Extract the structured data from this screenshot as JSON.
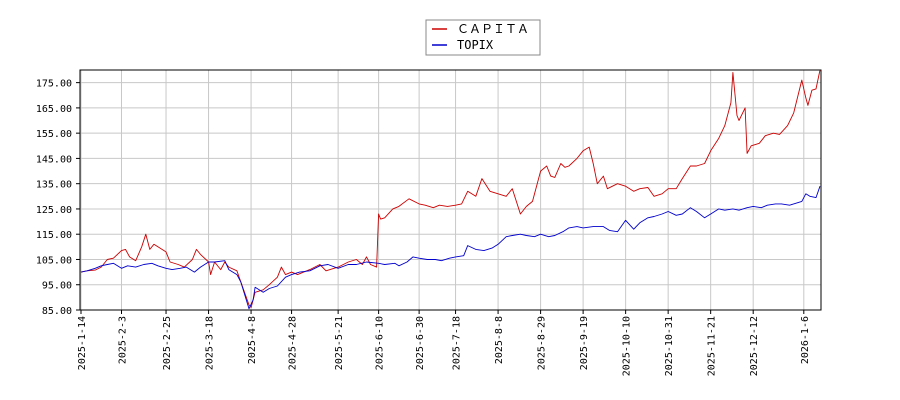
{
  "chart_data": {
    "type": "line",
    "title": "",
    "xlabel": "",
    "ylabel": "",
    "ylim": [
      85,
      180
    ],
    "grid": true,
    "legend_position": "top-center",
    "yticks": [
      "85.00",
      "95.00",
      "105.00",
      "115.00",
      "125.00",
      "135.00",
      "145.00",
      "155.00",
      "165.00",
      "175.00"
    ],
    "ytick_values": [
      85,
      95,
      105,
      115,
      125,
      135,
      145,
      155,
      165,
      175
    ],
    "xticks": [
      "2025-1-14",
      "2025-2-3",
      "2025-2-25",
      "2025-3-18",
      "2025-4-8",
      "2025-4-28",
      "2025-5-21",
      "2025-6-10",
      "2025-6-30",
      "2025-7-18",
      "2025-8-8",
      "2025-8-29",
      "2025-9-19",
      "2025-10-10",
      "2025-10-31",
      "2025-11-21",
      "2025-12-12",
      "2026-1-6"
    ],
    "series": [
      {
        "name": "ＣＡＰＩＴＡ",
        "color": "#cc0000",
        "points": [
          [
            "2025-1-14",
            100.0
          ],
          [
            "2025-1-17",
            100.5
          ],
          [
            "2025-1-21",
            100.8
          ],
          [
            "2025-1-24",
            102.0
          ],
          [
            "2025-1-27",
            105.0
          ],
          [
            "2025-1-30",
            105.5
          ],
          [
            "2025-2-3",
            108.5
          ],
          [
            "2025-2-5",
            109.0
          ],
          [
            "2025-2-7",
            106.0
          ],
          [
            "2025-2-10",
            104.5
          ],
          [
            "2025-2-13",
            110.0
          ],
          [
            "2025-2-15",
            115.0
          ],
          [
            "2025-2-17",
            109.0
          ],
          [
            "2025-2-19",
            111.0
          ],
          [
            "2025-2-21",
            110.0
          ],
          [
            "2025-2-25",
            108.0
          ],
          [
            "2025-2-27",
            104.0
          ],
          [
            "2025-3-3",
            103.0
          ],
          [
            "2025-3-6",
            102.0
          ],
          [
            "2025-3-10",
            105.0
          ],
          [
            "2025-3-12",
            109.0
          ],
          [
            "2025-3-14",
            107.0
          ],
          [
            "2025-3-18",
            104.0
          ],
          [
            "2025-3-19",
            99.0
          ],
          [
            "2025-3-21",
            104.0
          ],
          [
            "2025-3-24",
            101.0
          ],
          [
            "2025-3-26",
            104.0
          ],
          [
            "2025-3-28",
            102.0
          ],
          [
            "2025-4-1",
            100.5
          ],
          [
            "2025-4-3",
            96.0
          ],
          [
            "2025-4-7",
            87.0
          ],
          [
            "2025-4-8",
            86.0
          ],
          [
            "2025-4-10",
            92.0
          ],
          [
            "2025-4-14",
            93.0
          ],
          [
            "2025-4-17",
            95.0
          ],
          [
            "2025-4-21",
            98.0
          ],
          [
            "2025-4-23",
            102.0
          ],
          [
            "2025-4-25",
            99.0
          ],
          [
            "2025-4-28",
            100.0
          ],
          [
            "2025-5-1",
            99.0
          ],
          [
            "2025-5-7",
            101.0
          ],
          [
            "2025-5-12",
            103.0
          ],
          [
            "2025-5-15",
            100.5
          ],
          [
            "2025-5-21",
            102.0
          ],
          [
            "2025-5-26",
            104.0
          ],
          [
            "2025-5-30",
            105.0
          ],
          [
            "2025-6-2",
            103.0
          ],
          [
            "2025-6-4",
            106.0
          ],
          [
            "2025-6-6",
            103.0
          ],
          [
            "2025-6-9",
            102.0
          ],
          [
            "2025-6-10",
            123.0
          ],
          [
            "2025-6-11",
            121.0
          ],
          [
            "2025-6-13",
            121.5
          ],
          [
            "2025-6-17",
            125.0
          ],
          [
            "2025-6-20",
            126.0
          ],
          [
            "2025-6-25",
            129.0
          ],
          [
            "2025-6-30",
            127.0
          ],
          [
            "2025-7-3",
            126.5
          ],
          [
            "2025-7-7",
            125.5
          ],
          [
            "2025-7-10",
            126.5
          ],
          [
            "2025-7-14",
            126.0
          ],
          [
            "2025-7-18",
            126.5
          ],
          [
            "2025-7-21",
            127.0
          ],
          [
            "2025-7-24",
            132.0
          ],
          [
            "2025-7-28",
            130.0
          ],
          [
            "2025-7-31",
            137.0
          ],
          [
            "2025-8-4",
            132.0
          ],
          [
            "2025-8-8",
            131.0
          ],
          [
            "2025-8-12",
            130.0
          ],
          [
            "2025-8-15",
            133.0
          ],
          [
            "2025-8-19",
            123.0
          ],
          [
            "2025-8-22",
            126.0
          ],
          [
            "2025-8-25",
            128.0
          ],
          [
            "2025-8-29",
            140.0
          ],
          [
            "2025-9-1",
            142.0
          ],
          [
            "2025-9-3",
            138.0
          ],
          [
            "2025-9-5",
            137.5
          ],
          [
            "2025-9-8",
            143.0
          ],
          [
            "2025-9-10",
            141.5
          ],
          [
            "2025-9-12",
            142.0
          ],
          [
            "2025-9-16",
            145.0
          ],
          [
            "2025-9-19",
            148.0
          ],
          [
            "2025-9-22",
            149.5
          ],
          [
            "2025-9-24",
            143.0
          ],
          [
            "2025-9-26",
            135.0
          ],
          [
            "2025-9-29",
            138.0
          ],
          [
            "2025-10-1",
            133.0
          ],
          [
            "2025-10-6",
            135.0
          ],
          [
            "2025-10-10",
            134.0
          ],
          [
            "2025-10-14",
            132.0
          ],
          [
            "2025-10-17",
            133.0
          ],
          [
            "2025-10-21",
            133.5
          ],
          [
            "2025-10-24",
            130.0
          ],
          [
            "2025-10-28",
            131.0
          ],
          [
            "2025-10-31",
            133.0
          ],
          [
            "2025-11-4",
            133.0
          ],
          [
            "2025-11-7",
            137.0
          ],
          [
            "2025-11-11",
            142.0
          ],
          [
            "2025-11-14",
            142.0
          ],
          [
            "2025-11-18",
            143.0
          ],
          [
            "2025-11-21",
            148.0
          ],
          [
            "2025-11-25",
            153.0
          ],
          [
            "2025-11-28",
            158.0
          ],
          [
            "2025-12-1",
            167.0
          ],
          [
            "2025-12-2",
            179.0
          ],
          [
            "2025-12-4",
            162.0
          ],
          [
            "2025-12-5",
            160.0
          ],
          [
            "2025-12-8",
            165.0
          ],
          [
            "2025-12-9",
            147.0
          ],
          [
            "2025-12-11",
            150.0
          ],
          [
            "2025-12-15",
            151.0
          ],
          [
            "2025-12-18",
            154.0
          ],
          [
            "2025-12-22",
            155.0
          ],
          [
            "2025-12-25",
            154.5
          ],
          [
            "2025-12-29",
            158.0
          ],
          [
            "2026-1-1",
            163.0
          ],
          [
            "2026-1-5",
            176.0
          ],
          [
            "2026-1-7",
            169.0
          ],
          [
            "2026-1-8",
            166.0
          ],
          [
            "2026-1-10",
            172.0
          ],
          [
            "2026-1-12",
            172.5
          ],
          [
            "2026-1-14",
            180.0
          ]
        ]
      },
      {
        "name": "TOPIX",
        "color": "#0000cc",
        "points": [
          [
            "2025-1-14",
            100.0
          ],
          [
            "2025-1-17",
            100.5
          ],
          [
            "2025-1-21",
            101.5
          ],
          [
            "2025-1-24",
            102.5
          ],
          [
            "2025-1-27",
            103.0
          ],
          [
            "2025-1-30",
            103.5
          ],
          [
            "2025-2-3",
            101.5
          ],
          [
            "2025-2-6",
            102.5
          ],
          [
            "2025-2-10",
            102.0
          ],
          [
            "2025-2-14",
            103.0
          ],
          [
            "2025-2-18",
            103.5
          ],
          [
            "2025-2-21",
            102.5
          ],
          [
            "2025-2-25",
            101.5
          ],
          [
            "2025-2-28",
            101.0
          ],
          [
            "2025-3-4",
            101.5
          ],
          [
            "2025-3-7",
            102.0
          ],
          [
            "2025-3-11",
            100.0
          ],
          [
            "2025-3-14",
            102.0
          ],
          [
            "2025-3-18",
            104.0
          ],
          [
            "2025-3-21",
            104.0
          ],
          [
            "2025-3-26",
            104.5
          ],
          [
            "2025-3-28",
            101.0
          ],
          [
            "2025-4-1",
            99.0
          ],
          [
            "2025-4-3",
            96.0
          ],
          [
            "2025-4-7",
            85.5
          ],
          [
            "2025-4-9",
            89.0
          ],
          [
            "2025-4-10",
            94.0
          ],
          [
            "2025-4-14",
            92.0
          ],
          [
            "2025-4-17",
            93.5
          ],
          [
            "2025-4-21",
            94.5
          ],
          [
            "2025-4-25",
            98.0
          ],
          [
            "2025-4-28",
            99.0
          ],
          [
            "2025-5-2",
            100.0
          ],
          [
            "2025-5-7",
            100.5
          ],
          [
            "2025-5-12",
            102.5
          ],
          [
            "2025-5-16",
            103.0
          ],
          [
            "2025-5-21",
            101.5
          ],
          [
            "2025-5-26",
            103.0
          ],
          [
            "2025-5-30",
            103.0
          ],
          [
            "2025-6-4",
            104.0
          ],
          [
            "2025-6-10",
            103.5
          ],
          [
            "2025-6-13",
            103.0
          ],
          [
            "2025-6-18",
            103.5
          ],
          [
            "2025-6-20",
            102.5
          ],
          [
            "2025-6-24",
            104.0
          ],
          [
            "2025-6-27",
            106.0
          ],
          [
            "2025-6-30",
            105.5
          ],
          [
            "2025-7-4",
            105.0
          ],
          [
            "2025-7-8",
            105.0
          ],
          [
            "2025-7-11",
            104.5
          ],
          [
            "2025-7-15",
            105.5
          ],
          [
            "2025-7-18",
            106.0
          ],
          [
            "2025-7-22",
            106.5
          ],
          [
            "2025-7-24",
            110.5
          ],
          [
            "2025-7-28",
            109.0
          ],
          [
            "2025-8-1",
            108.5
          ],
          [
            "2025-8-5",
            109.5
          ],
          [
            "2025-8-8",
            111.0
          ],
          [
            "2025-8-12",
            114.0
          ],
          [
            "2025-8-15",
            114.5
          ],
          [
            "2025-8-19",
            115.0
          ],
          [
            "2025-8-22",
            114.5
          ],
          [
            "2025-8-26",
            114.0
          ],
          [
            "2025-8-29",
            115.0
          ],
          [
            "2025-9-2",
            114.0
          ],
          [
            "2025-9-5",
            114.5
          ],
          [
            "2025-9-9",
            116.0
          ],
          [
            "2025-9-12",
            117.5
          ],
          [
            "2025-9-16",
            118.0
          ],
          [
            "2025-9-19",
            117.5
          ],
          [
            "2025-9-24",
            118.0
          ],
          [
            "2025-9-29",
            118.0
          ],
          [
            "2025-10-2",
            116.5
          ],
          [
            "2025-10-6",
            116.0
          ],
          [
            "2025-10-10",
            120.5
          ],
          [
            "2025-10-14",
            117.0
          ],
          [
            "2025-10-17",
            119.5
          ],
          [
            "2025-10-21",
            121.5
          ],
          [
            "2025-10-24",
            122.0
          ],
          [
            "2025-10-28",
            123.0
          ],
          [
            "2025-10-31",
            124.0
          ],
          [
            "2025-11-4",
            122.5
          ],
          [
            "2025-11-7",
            123.0
          ],
          [
            "2025-11-11",
            125.5
          ],
          [
            "2025-11-14",
            124.0
          ],
          [
            "2025-11-18",
            121.5
          ],
          [
            "2025-11-21",
            123.0
          ],
          [
            "2025-11-25",
            125.0
          ],
          [
            "2025-11-28",
            124.5
          ],
          [
            "2025-12-2",
            125.0
          ],
          [
            "2025-12-5",
            124.5
          ],
          [
            "2025-12-9",
            125.5
          ],
          [
            "2025-12-12",
            126.0
          ],
          [
            "2025-12-16",
            125.5
          ],
          [
            "2025-12-19",
            126.5
          ],
          [
            "2025-12-23",
            127.0
          ],
          [
            "2025-12-26",
            127.0
          ],
          [
            "2025-12-30",
            126.5
          ],
          [
            "2026-1-5",
            128.0
          ],
          [
            "2026-1-7",
            131.0
          ],
          [
            "2026-1-9",
            130.0
          ],
          [
            "2026-1-12",
            129.5
          ],
          [
            "2026-1-14",
            134.0
          ]
        ]
      }
    ]
  }
}
